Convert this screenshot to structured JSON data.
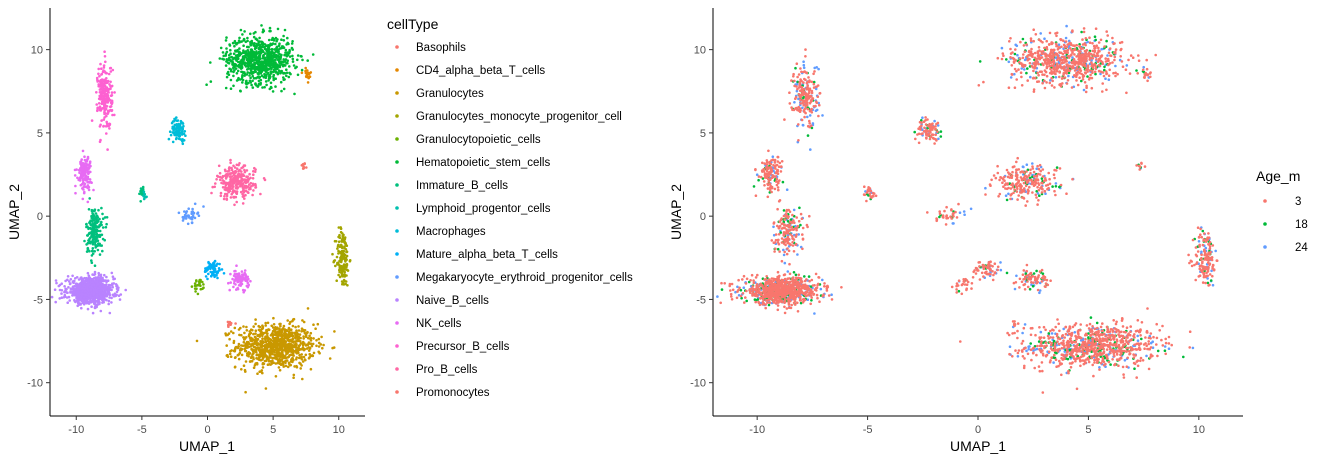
{
  "chart_data": [
    {
      "type": "scatter",
      "xlabel": "UMAP_1",
      "ylabel": "UMAP_2",
      "xlim": [
        -12,
        12
      ],
      "ylim": [
        -12,
        12.5
      ],
      "x_ticks": [
        -10,
        -5,
        0,
        5,
        10
      ],
      "y_ticks": [
        -10,
        -5,
        0,
        5,
        10
      ],
      "legend_title": "cellType",
      "legend_position": "right",
      "series": [
        {
          "name": "Basophils",
          "color": "#F8766D",
          "clusters": [
            [
              7.3,
              3.0,
              0.15,
              0.2,
              10
            ]
          ]
        },
        {
          "name": "CD4_alpha_beta_T_cells",
          "color": "#E58700",
          "clusters": [
            [
              7.6,
              8.5,
              0.4,
              0.5,
              20
            ]
          ]
        },
        {
          "name": "Granulocytes",
          "color": "#C99800",
          "clusters": [
            [
              5.2,
              -7.8,
              2.7,
              1.2,
              900
            ]
          ]
        },
        {
          "name": "Granulocytes_monocyte_progenitor_cell",
          "color": "#A3A500",
          "clusters": [
            [
              10.3,
              -2.5,
              0.45,
              1.6,
              160
            ]
          ]
        },
        {
          "name": "Granulocytopoietic_cells",
          "color": "#6BB100",
          "clusters": [
            [
              -0.6,
              -4.2,
              0.4,
              0.4,
              25
            ]
          ]
        },
        {
          "name": "Hematopoietic_stem_cells",
          "color": "#00BA38",
          "clusters": [
            [
              4.0,
              9.4,
              2.3,
              1.3,
              800
            ]
          ]
        },
        {
          "name": "Immature_B_cells",
          "color": "#00BF7D",
          "clusters": [
            [
              -8.6,
              -0.9,
              0.6,
              1.3,
              180
            ],
            [
              -5.0,
              1.4,
              0.3,
              0.4,
              20
            ]
          ]
        },
        {
          "name": "Lymphoid_progentor_cells",
          "color": "#00C0AF",
          "clusters": [
            [
              -4.8,
              1.2,
              0.2,
              0.2,
              8
            ]
          ]
        },
        {
          "name": "Macrophages",
          "color": "#00BCD8",
          "clusters": [
            [
              -2.2,
              5.2,
              0.5,
              0.6,
              90
            ]
          ]
        },
        {
          "name": "Mature_alpha_beta_T_cells",
          "color": "#00B0F6",
          "clusters": [
            [
              0.4,
              -3.2,
              0.6,
              0.5,
              70
            ]
          ]
        },
        {
          "name": "Megakaryocyte_erythroid_progenitor_cells",
          "color": "#619CFF",
          "clusters": [
            [
              -1.3,
              0.1,
              0.5,
              0.4,
              40
            ]
          ]
        },
        {
          "name": "Naive_B_cells",
          "color": "#B983FF",
          "clusters": [
            [
              -8.9,
              -4.5,
              1.6,
              0.7,
              900
            ]
          ]
        },
        {
          "name": "NK_cells",
          "color": "#E76BF3",
          "clusters": [
            [
              2.5,
              -3.8,
              0.6,
              0.5,
              90
            ],
            [
              -9.4,
              2.6,
              0.5,
              0.9,
              140
            ]
          ]
        },
        {
          "name": "Precursor_B_cells",
          "color": "#FD61D1",
          "clusters": [
            [
              -7.8,
              7.2,
              0.5,
              1.8,
              230
            ]
          ]
        },
        {
          "name": "Pro_B_cells",
          "color": "#FF67A4",
          "clusters": [
            [
              2.2,
              2.0,
              1.3,
              0.9,
              260
            ]
          ]
        },
        {
          "name": "Promonocytes",
          "color": "#F8766D",
          "clusters": [
            [
              1.6,
              -6.5,
              0.3,
              0.3,
              10
            ]
          ]
        }
      ]
    },
    {
      "type": "scatter",
      "xlabel": "UMAP_1",
      "ylabel": "UMAP_2",
      "xlim": [
        -12,
        12
      ],
      "ylim": [
        -12,
        12.5
      ],
      "x_ticks": [
        -10,
        -5,
        0,
        5,
        10
      ],
      "y_ticks": [
        -10,
        -5,
        0,
        5,
        10
      ],
      "legend_title": "Age_m",
      "legend_position": "right",
      "series": [
        {
          "name": "3",
          "color": "#F8766D"
        },
        {
          "name": "18",
          "color": "#00BA38"
        },
        {
          "name": "24",
          "color": "#619CFF"
        }
      ]
    }
  ]
}
